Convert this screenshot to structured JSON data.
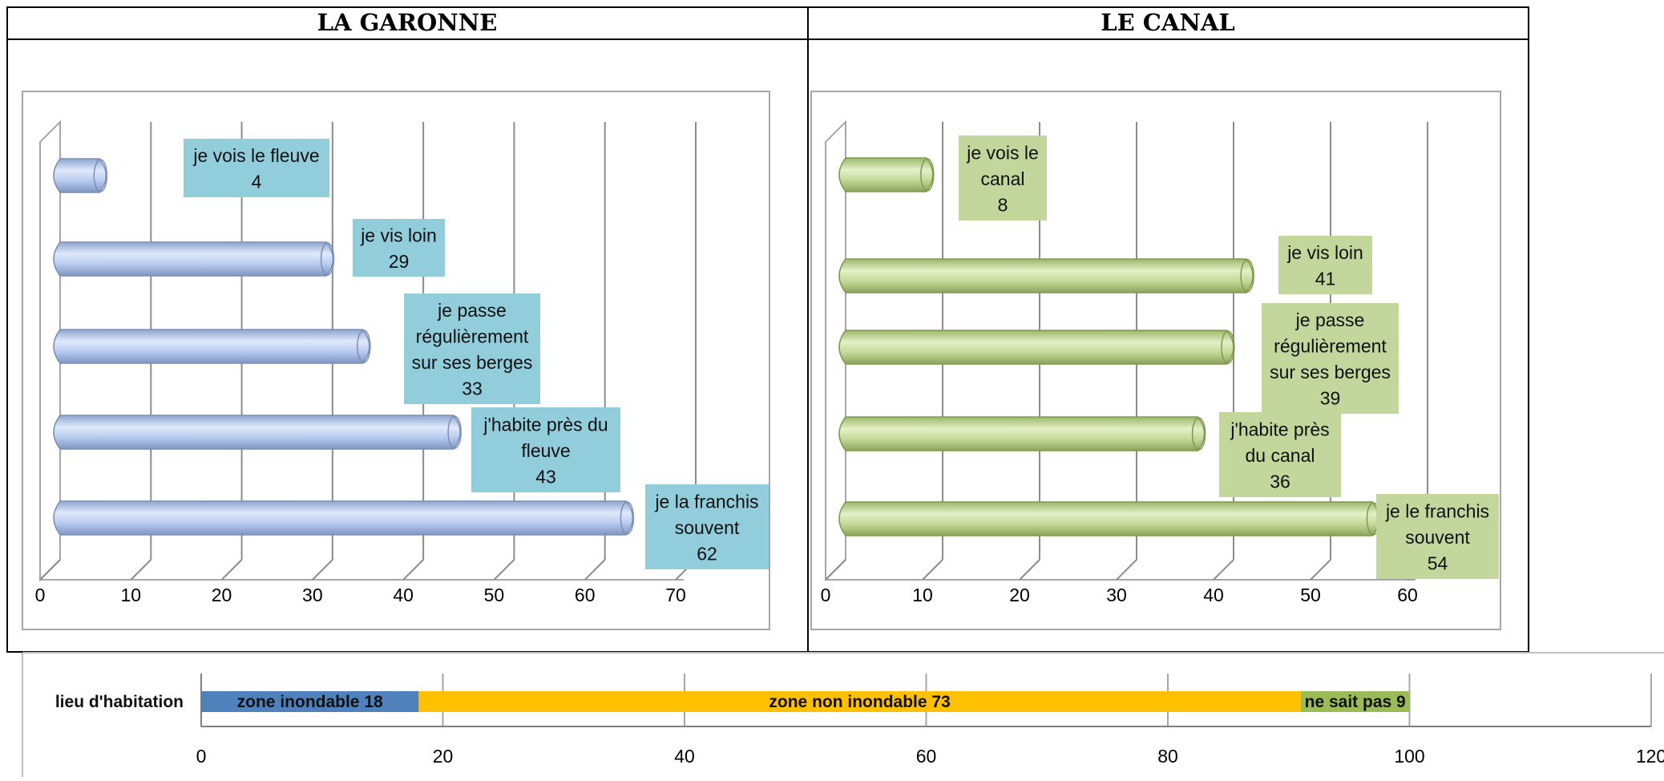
{
  "panels": {
    "left_title": "LA GARONNE",
    "right_title": "LE CANAL"
  },
  "chart_data": [
    {
      "type": "bar",
      "orientation": "horizontal",
      "style": "3d-cylinder",
      "title": "LA GARONNE",
      "categories": [
        "je vois le fleuve",
        "je vis loin",
        "je passe régulièrement sur ses berges",
        "j'habite près du fleuve",
        "je la franchis souvent"
      ],
      "label_lines": [
        [
          "je vois le fleuve",
          "4"
        ],
        [
          "je vis loin",
          "29"
        ],
        [
          "je passe",
          "régulièrement",
          "sur ses berges",
          "33"
        ],
        [
          "j'habite près du",
          "fleuve",
          "43"
        ],
        [
          "je la franchis",
          "souvent",
          "62"
        ]
      ],
      "values": [
        4,
        29,
        33,
        43,
        62
      ],
      "xlim": [
        0,
        70
      ],
      "ticks": [
        "0",
        "10",
        "20",
        "30",
        "40",
        "50",
        "60",
        "70"
      ],
      "bar_color": "#b4c8ea",
      "label_color": "#92cddc",
      "grid": true
    },
    {
      "type": "bar",
      "orientation": "horizontal",
      "style": "3d-cylinder",
      "title": "LE CANAL",
      "categories": [
        "je vois le canal",
        "je vis loin",
        "je passe régulièrement sur ses berges",
        "j'habite près du canal",
        "je le franchis souvent"
      ],
      "label_lines": [
        [
          "je vois le",
          "canal",
          "8"
        ],
        [
          "je vis loin",
          "41"
        ],
        [
          "je passe",
          "régulièrement",
          "sur ses berges",
          "39"
        ],
        [
          "j'habite près",
          "du canal",
          "36"
        ],
        [
          "je le franchis",
          "souvent",
          "54"
        ]
      ],
      "values": [
        8,
        41,
        39,
        36,
        54
      ],
      "xlim": [
        0,
        60
      ],
      "ticks": [
        "0",
        "10",
        "20",
        "30",
        "40",
        "50",
        "60"
      ],
      "bar_color": "#c3d69b",
      "label_color": "#c3d69b",
      "grid": true
    },
    {
      "type": "bar",
      "orientation": "horizontal",
      "stacked": true,
      "categories": [
        "lieu d'habitation"
      ],
      "series": [
        {
          "label": "zone inondable 18",
          "value": 18,
          "color": "#4f81bd"
        },
        {
          "label": "zone non inondable 73",
          "value": 73,
          "color": "#ffc000"
        },
        {
          "label": "ne sait pas 9",
          "value": 9,
          "color": "#9bbb59"
        }
      ],
      "xlim": [
        0,
        120
      ],
      "ticks": [
        "0",
        "20",
        "40",
        "60",
        "80",
        "100",
        "120"
      ],
      "grid": true
    }
  ]
}
